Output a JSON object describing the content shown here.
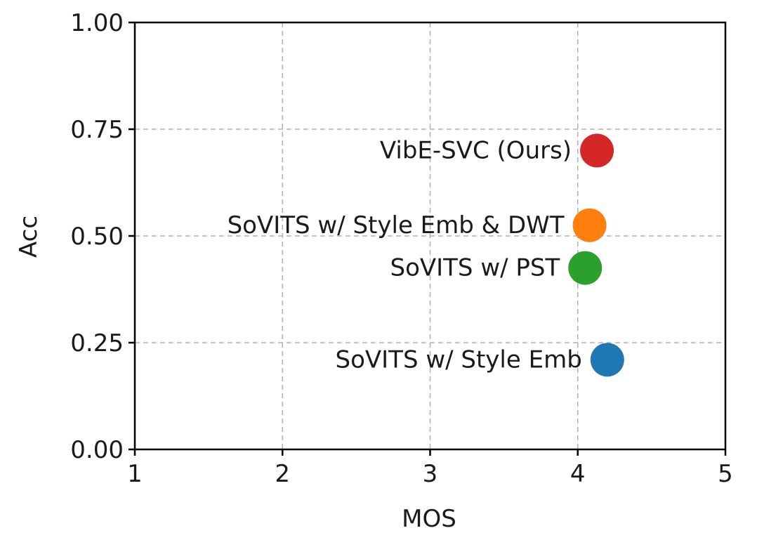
{
  "chart_data": {
    "type": "scatter",
    "title": "",
    "xlabel": "MOS",
    "ylabel": "Acc",
    "xlim": [
      1,
      5
    ],
    "ylim": [
      0,
      1
    ],
    "grid": true,
    "x_ticks": [
      "1",
      "2",
      "3",
      "4",
      "5"
    ],
    "y_ticks": [
      "0.00",
      "0.25",
      "0.50",
      "0.75",
      "1.00"
    ],
    "points": [
      {
        "label": "VibE-SVC (Ours)",
        "x": 4.13,
        "y": 0.7,
        "color": "#d62728"
      },
      {
        "label": "SoVITS w/ Style Emb & DWT",
        "x": 4.08,
        "y": 0.525,
        "color": "#ff7f0e"
      },
      {
        "label": "SoVITS w/ PST",
        "x": 4.05,
        "y": 0.425,
        "color": "#2ca02c"
      },
      {
        "label": "SoVITS w/ Style Emb",
        "x": 4.2,
        "y": 0.21,
        "color": "#1f77b4"
      }
    ]
  }
}
